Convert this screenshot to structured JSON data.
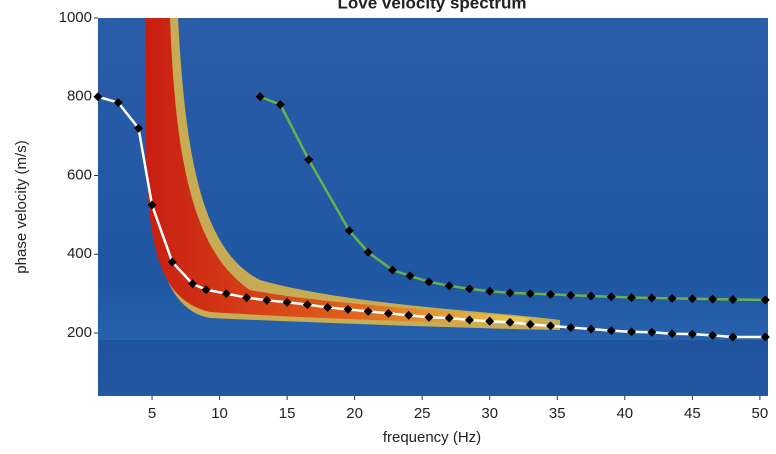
{
  "chart_data": {
    "type": "line",
    "title": "Love velocity spectrum",
    "x_label": "frequency (Hz)",
    "y_label": "phase velocity (m/s)",
    "xlim": [
      1,
      50.6
    ],
    "ylim": [
      40,
      1000
    ],
    "xticks": [
      5,
      10,
      15,
      20,
      25,
      30,
      35,
      40,
      45,
      50
    ],
    "yticks": [
      200,
      400,
      600,
      800,
      1000
    ],
    "series": [
      {
        "color": "#ffffff",
        "x": [
          1,
          2.5,
          4,
          5,
          6.5,
          8,
          9,
          10.5,
          12,
          13.5,
          15,
          16.5,
          18,
          19.5,
          21,
          22.5,
          24,
          25.5,
          27,
          28.5,
          30,
          31.5,
          33,
          34.5,
          36,
          37.5,
          39,
          40.5,
          42,
          43.5,
          45,
          46.5,
          48,
          50.4
        ],
        "values": [
          800,
          785,
          720,
          525,
          380,
          325,
          310,
          300,
          290,
          283,
          278,
          272,
          265,
          260,
          255,
          250,
          245,
          240,
          238,
          233,
          230,
          227,
          222,
          218,
          214,
          210,
          206,
          203,
          202,
          198,
          197,
          194,
          190,
          190
        ]
      },
      {
        "color": "#6ab04c",
        "x": [
          13,
          14.5,
          16.6,
          19.6,
          21,
          22.8,
          24.1,
          25.5,
          27,
          28.5,
          30,
          31.5,
          33,
          34.5,
          36,
          37.5,
          39,
          40.5,
          42,
          43.5,
          45,
          46.5,
          48,
          50.4
        ],
        "values": [
          800,
          780,
          640,
          460,
          405,
          360,
          345,
          330,
          320,
          312,
          306,
          302,
          300,
          298,
          296,
          294,
          292,
          290,
          289,
          288,
          287,
          286,
          285,
          284
        ]
      }
    ]
  }
}
